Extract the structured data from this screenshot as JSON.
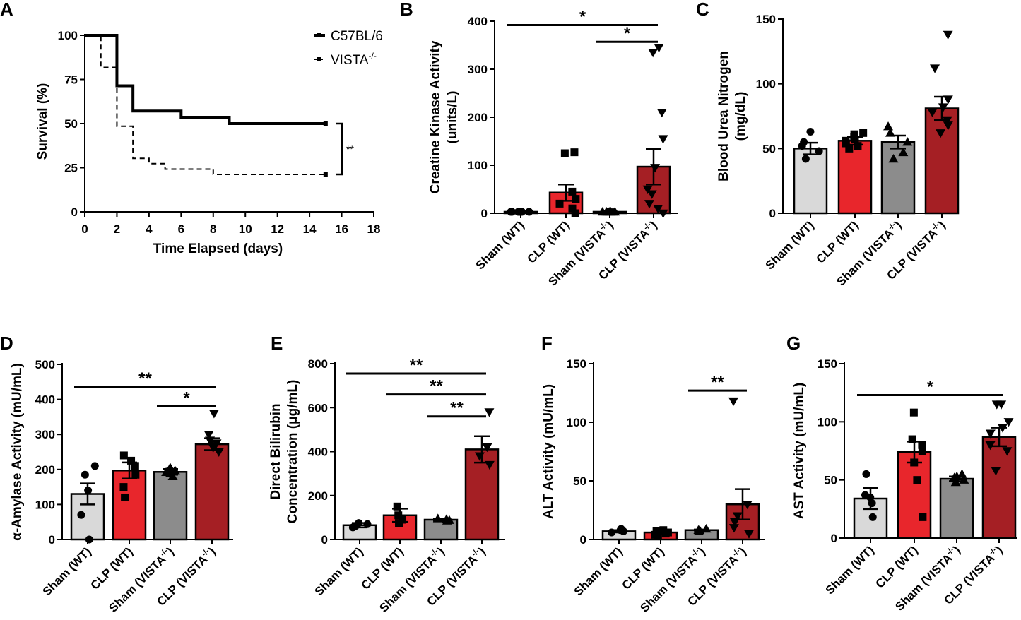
{
  "chart_data": [
    {
      "panel": "A",
      "type": "line",
      "subtype": "kaplan-meier",
      "xlabel": "Time Elapsed (days)",
      "ylabel": "Survival  (%)",
      "xlim": [
        0,
        18
      ],
      "ylim": [
        0,
        100
      ],
      "xticks": [
        0,
        2,
        4,
        6,
        8,
        10,
        12,
        14,
        16,
        18
      ],
      "yticks": [
        0,
        25,
        50,
        75,
        100
      ],
      "series": [
        {
          "name": "C57BL/6",
          "legend_sup": "",
          "style": "solid",
          "points": [
            [
              0,
              100
            ],
            [
              2,
              100
            ],
            [
              2,
              71.4
            ],
            [
              3,
              71.4
            ],
            [
              3,
              57.1
            ],
            [
              6,
              57.1
            ],
            [
              6,
              53.6
            ],
            [
              9,
              53.6
            ],
            [
              9,
              50
            ],
            [
              15,
              50
            ]
          ]
        },
        {
          "name": "VISTA",
          "legend_sup": "-/-",
          "style": "dashed",
          "points": [
            [
              0,
              100
            ],
            [
              1,
              100
            ],
            [
              1,
              81.8
            ],
            [
              2,
              81.8
            ],
            [
              2,
              48.5
            ],
            [
              3,
              48.5
            ],
            [
              3,
              30.3
            ],
            [
              4,
              30.3
            ],
            [
              4,
              27.3
            ],
            [
              5,
              27.3
            ],
            [
              5,
              24.2
            ],
            [
              8,
              24.2
            ],
            [
              8,
              21.2
            ],
            [
              15,
              21.2
            ]
          ]
        }
      ],
      "annotations": [
        {
          "text": "**",
          "between": [
            "C57BL/6",
            "VISTA-/-"
          ],
          "at_x": 15
        }
      ]
    },
    {
      "panel": "B",
      "type": "bar",
      "ylabel_lines": [
        "Creatine Kinase Activity",
        "(units/L)"
      ],
      "ylim": [
        0,
        400
      ],
      "yticks": [
        0,
        100,
        200,
        300,
        400
      ],
      "categories": [
        {
          "base": "Sham (WT)",
          "sup": ""
        },
        {
          "base": "CLP (WT)",
          "sup": ""
        },
        {
          "base": "Sham (VISTA",
          "sup": "-/-",
          "tail": ")"
        },
        {
          "base": "CLP (VISTA",
          "sup": "-/-",
          "tail": ")"
        }
      ],
      "values": [
        3,
        43,
        3,
        97
      ],
      "sem": [
        0.5,
        17,
        0.5,
        37
      ],
      "points": [
        [
          3,
          3,
          3,
          3,
          3,
          3
        ],
        [
          0,
          10,
          20,
          30,
          45,
          125,
          127
        ],
        [
          3,
          3,
          3,
          3,
          3,
          3,
          3
        ],
        [
          0,
          10,
          20,
          40,
          50,
          95,
          155,
          210,
          335,
          345
        ]
      ],
      "comparisons": [
        {
          "from": 0,
          "to": 3,
          "label": "*",
          "y": 392
        },
        {
          "from": 2,
          "to": 3,
          "label": "*",
          "y": 357
        }
      ]
    },
    {
      "panel": "C",
      "type": "bar",
      "ylabel_lines": [
        "Blood Urea Nitrogen",
        "(mg/dL)"
      ],
      "ylim": [
        0,
        150
      ],
      "yticks": [
        0,
        50,
        100,
        150
      ],
      "categories": [
        {
          "base": "Sham (WT)",
          "sup": ""
        },
        {
          "base": "CLP (WT)",
          "sup": ""
        },
        {
          "base": "Sham (VISTA",
          "sup": "-/-",
          "tail": ")"
        },
        {
          "base": "CLP (VISTA",
          "sup": "-/-",
          "tail": ")"
        }
      ],
      "values": [
        50,
        56,
        55,
        81
      ],
      "sem": [
        4.5,
        3,
        5,
        9
      ],
      "points": [
        [
          42,
          48,
          52,
          55,
          63
        ],
        [
          50,
          52,
          54,
          56,
          57,
          59,
          61,
          62
        ],
        [
          42,
          47,
          55,
          62,
          67
        ],
        [
          62,
          68,
          72,
          78,
          82,
          88,
          112,
          138
        ]
      ],
      "comparisons": []
    },
    {
      "panel": "D",
      "type": "bar",
      "ylabel_lines": [
        "α-Amylase Activity (mU/mL)"
      ],
      "ylim": [
        0,
        500
      ],
      "yticks": [
        0,
        100,
        200,
        300,
        400,
        500
      ],
      "categories": [
        {
          "base": "Sham (WT)",
          "sup": ""
        },
        {
          "base": "CLP (WT)",
          "sup": ""
        },
        {
          "base": "Sham (VISTA",
          "sup": "-/-",
          "tail": ")"
        },
        {
          "base": "CLP (VISTA",
          "sup": "-/-",
          "tail": ")"
        }
      ],
      "values": [
        130,
        197,
        193,
        272
      ],
      "sem": [
        30,
        23,
        8,
        17
      ],
      "points": [
        [
          0,
          70,
          140,
          185,
          210
        ],
        [
          120,
          150,
          185,
          210,
          225,
          240
        ],
        [
          180,
          188,
          192,
          197,
          200,
          205
        ],
        [
          250,
          262,
          275,
          283,
          300,
          360
        ]
      ],
      "comparisons": [
        {
          "from": 0,
          "to": 3,
          "label": "**",
          "y": 435
        },
        {
          "from": 2,
          "to": 3,
          "label": "*",
          "y": 380
        }
      ]
    },
    {
      "panel": "E",
      "type": "bar",
      "ylabel_lines": [
        "Direct Bilirubin",
        "Concentration (μg/mL)"
      ],
      "ylim": [
        0,
        800
      ],
      "yticks": [
        0,
        200,
        400,
        600,
        800
      ],
      "categories": [
        {
          "base": "Sham (WT)",
          "sup": ""
        },
        {
          "base": "CLP (WT)",
          "sup": ""
        },
        {
          "base": "Sham (VISTA",
          "sup": "-/-",
          "tail": ")"
        },
        {
          "base": "CLP (VISTA",
          "sup": "-/-",
          "tail": ")"
        }
      ],
      "values": [
        65,
        110,
        90,
        410
      ],
      "sem": [
        10,
        30,
        5,
        60
      ],
      "points": [
        [
          55,
          62,
          70,
          75
        ],
        [
          75,
          90,
          110,
          150
        ],
        [
          85,
          88,
          92,
          95
        ],
        [
          340,
          380,
          420,
          580
        ]
      ],
      "comparisons": [
        {
          "from": 0,
          "to": 3,
          "label": "**",
          "y": 755
        },
        {
          "from": 1,
          "to": 3,
          "label": "**",
          "y": 660
        },
        {
          "from": 2,
          "to": 3,
          "label": "**",
          "y": 560
        }
      ]
    },
    {
      "panel": "F",
      "type": "bar",
      "ylabel_lines": [
        "ALT Activity (mU/mL)"
      ],
      "ylim": [
        0,
        150
      ],
      "yticks": [
        0,
        50,
        100,
        150
      ],
      "categories": [
        {
          "base": "Sham (WT)",
          "sup": ""
        },
        {
          "base": "CLP (WT)",
          "sup": ""
        },
        {
          "base": "Sham (VISTA",
          "sup": "-/-",
          "tail": ")"
        },
        {
          "base": "CLP (VISTA",
          "sup": "-/-",
          "tail": ")"
        }
      ],
      "values": [
        7,
        6,
        8,
        30
      ],
      "sem": [
        1,
        1,
        0.5,
        13
      ],
      "points": [
        [
          6,
          7,
          8,
          9
        ],
        [
          3,
          4,
          5,
          6,
          7,
          8
        ],
        [
          7,
          8,
          8,
          9
        ],
        [
          5,
          10,
          15,
          20,
          30,
          118
        ]
      ],
      "comparisons": [
        {
          "from": 2,
          "to": 3,
          "label": "**",
          "y": 127
        }
      ]
    },
    {
      "panel": "G",
      "type": "bar",
      "ylabel_lines": [
        "AST Activity (mU/mL)"
      ],
      "ylim": [
        0,
        150
      ],
      "yticks": [
        0,
        50,
        100,
        150
      ],
      "categories": [
        {
          "base": "Sham (WT)",
          "sup": ""
        },
        {
          "base": "CLP (WT)",
          "sup": ""
        },
        {
          "base": "Sham (VISTA",
          "sup": "-/-",
          "tail": ")"
        },
        {
          "base": "CLP (VISTA",
          "sup": "-/-",
          "tail": ")"
        }
      ],
      "values": [
        34,
        74,
        51,
        87
      ],
      "sem": [
        9,
        9,
        2,
        8
      ],
      "points": [
        [
          18,
          30,
          35,
          37,
          55
        ],
        [
          18,
          50,
          65,
          75,
          80,
          85,
          108
        ],
        [
          48,
          50,
          52,
          53,
          55
        ],
        [
          58,
          75,
          80,
          90,
          95,
          100,
          115,
          115
        ]
      ],
      "comparisons": [
        {
          "from": 0,
          "to": 3,
          "label": "*",
          "y": 123
        }
      ]
    }
  ],
  "colors": {
    "sham_wt": "#d9d9d9",
    "clp_wt": "#e8262c",
    "sham_vista": "#8c8c8c",
    "clp_vista": "#a51f24",
    "axis": "#000000"
  },
  "icons": [
    "circle-marker",
    "square-marker",
    "triangle-up-marker",
    "triangle-down-marker"
  ]
}
